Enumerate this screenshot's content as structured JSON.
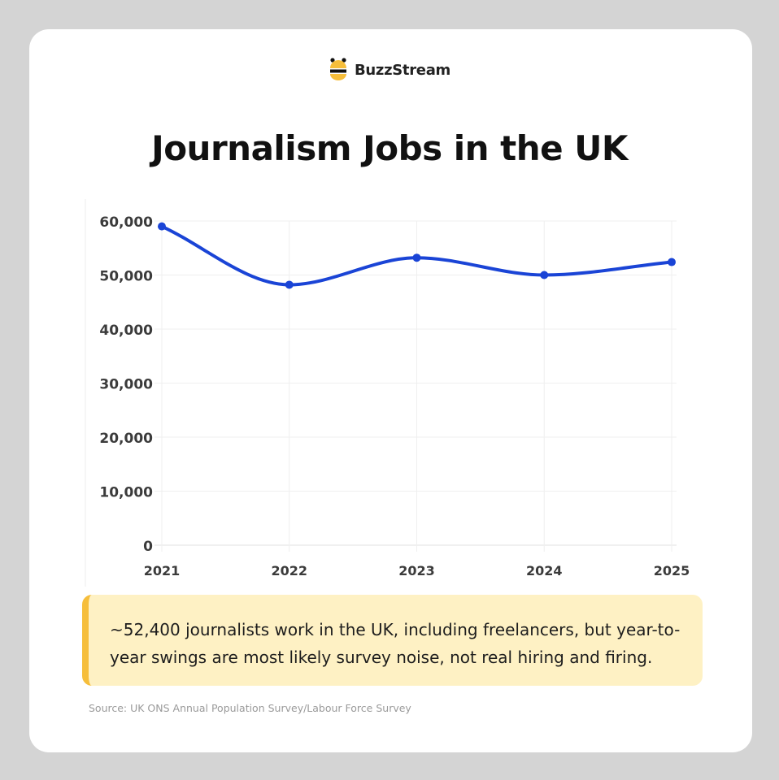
{
  "brand": {
    "name": "BuzzStream",
    "logo_icon": "bee-icon"
  },
  "title": "Journalism Jobs in the UK",
  "chart_data": {
    "type": "line",
    "title": "Journalism Jobs in the UK",
    "xlabel": "",
    "ylabel": "",
    "categories": [
      "2021",
      "2022",
      "2023",
      "2024",
      "2025"
    ],
    "series": [
      {
        "values": [
          59000,
          48200,
          53200,
          50000,
          52400
        ]
      }
    ],
    "ylim": [
      0,
      60000
    ],
    "y_ticks": [
      "0",
      "10,000",
      "20,000",
      "30,000",
      "40,000",
      "50,000",
      "60,000"
    ],
    "grid": true,
    "curve": "smooth",
    "line_color": "#1a44d6"
  },
  "note": "~52,400 journalists work in the UK, including freelancers, but year-to-year swings are most likely survey noise, not real hiring and firing.",
  "source": "Source: UK ONS Annual Population Survey/Labour Force Survey",
  "colors": {
    "background": "#d4d4d4",
    "card": "#ffffff",
    "note_bg": "#fef1c4",
    "note_accent": "#f6be3b"
  }
}
